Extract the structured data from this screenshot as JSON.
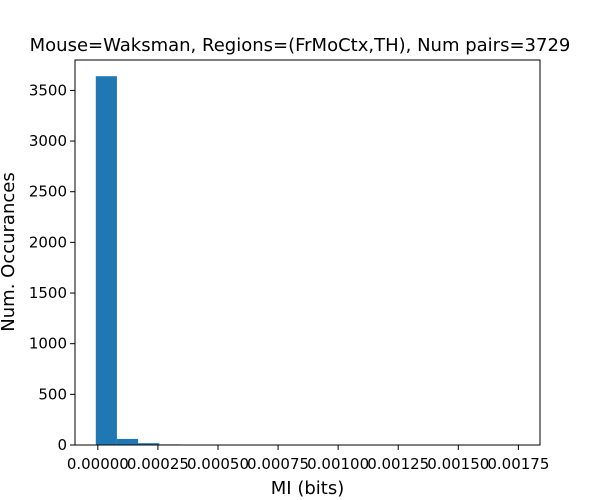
{
  "chart_data": {
    "type": "bar",
    "title": "Mouse=Waksman, Regions=(FrMoCtx,TH), Num pairs=3729",
    "xlabel": "MI (bits)",
    "ylabel": "Num. Occurances",
    "xlim": [
      -9.5e-05,
      0.00184
    ],
    "ylim": [
      0,
      3800
    ],
    "xticks": [
      0.0,
      0.00025,
      0.0005,
      0.00075,
      0.001,
      0.00125,
      0.0015,
      0.00175
    ],
    "xtick_labels": [
      "0.00000",
      "0.00025",
      "0.00050",
      "0.00075",
      "0.00100",
      "0.00125",
      "0.00150",
      "0.00175"
    ],
    "yticks": [
      0,
      500,
      1000,
      1500,
      2000,
      2500,
      3000,
      3500
    ],
    "ytick_labels": [
      "0",
      "500",
      "1000",
      "1500",
      "2000",
      "2500",
      "3000",
      "3500"
    ],
    "bin_edges": [
      -8.5e-06,
      7.95e-05,
      0.0001675,
      0.0002555,
      0.0003435,
      0.0004315,
      0.0005195,
      0.0006075,
      0.0006955,
      0.0007835,
      0.0008715,
      0.0009595,
      0.0010475,
      0.0011355,
      0.0012235,
      0.0013115,
      0.0013995,
      0.0014875,
      0.0015755,
      0.0016635,
      0.0017515
    ],
    "values": [
      3640,
      60,
      18,
      6,
      2,
      1,
      1,
      0,
      0,
      0,
      0,
      0,
      0,
      0,
      0,
      0,
      0,
      0,
      0,
      1
    ],
    "bar_color": "#1f77b4",
    "grid": false,
    "legend": "none"
  }
}
